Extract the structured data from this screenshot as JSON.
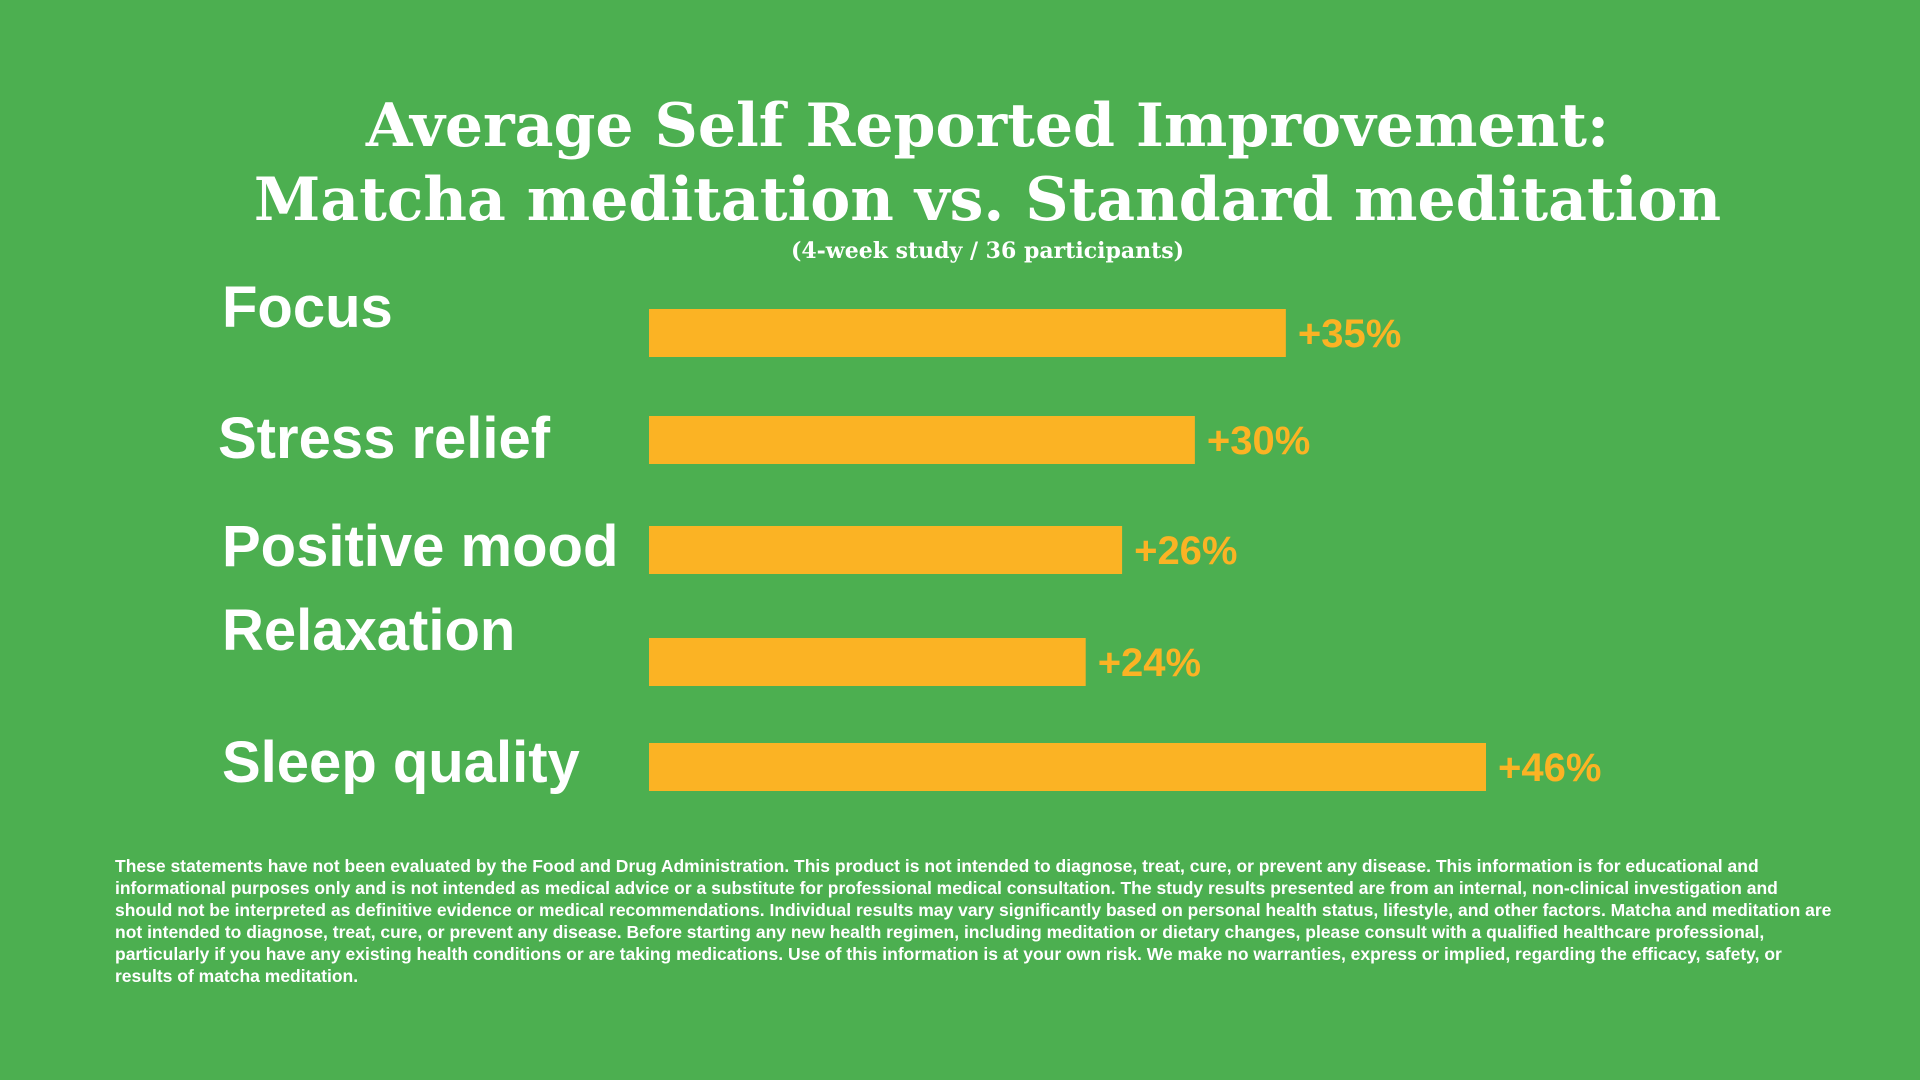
{
  "title_line1": "Average Self Reported Improvement:",
  "title_line2": "Matcha meditation vs. Standard meditation",
  "subtitle": "(4-week study / 36 participants)",
  "colors": {
    "background": "#4caf50",
    "bar": "#fbb324",
    "value_label": "#fbb324",
    "text": "#ffffff"
  },
  "chart_data": {
    "type": "bar",
    "orientation": "horizontal",
    "categories": [
      "Focus",
      "Stress relief",
      "Positive mood",
      "Relaxation",
      "Sleep quality"
    ],
    "values": [
      35,
      30,
      26,
      24,
      46
    ],
    "value_labels": [
      "+35%",
      "+30%",
      "+26%",
      "+24%",
      "+46%"
    ],
    "unit": "%",
    "xlim": [
      0,
      46
    ],
    "grid": false,
    "legend": "none"
  },
  "disclaimer": "These statements have not been evaluated by the Food and Drug Administration. This product is not intended to diagnose, treat, cure, or prevent any disease. This information is for educational and informational purposes only and is not intended as medical advice or a substitute for professional medical consultation. The study results presented are from an internal, non-clinical investigation and should not be interpreted as definitive evidence or medical recommendations. Individual results may vary significantly based on personal health status, lifestyle, and other factors. Matcha and meditation are not intended to diagnose, treat, cure, or prevent any disease. Before starting any new health regimen, including meditation or dietary changes, please consult with a qualified healthcare professional, particularly if you have any existing health conditions or are taking medications. Use of this information is at your own risk. We make no warranties, express or implied, regarding the efficacy, safety, or results of matcha meditation."
}
